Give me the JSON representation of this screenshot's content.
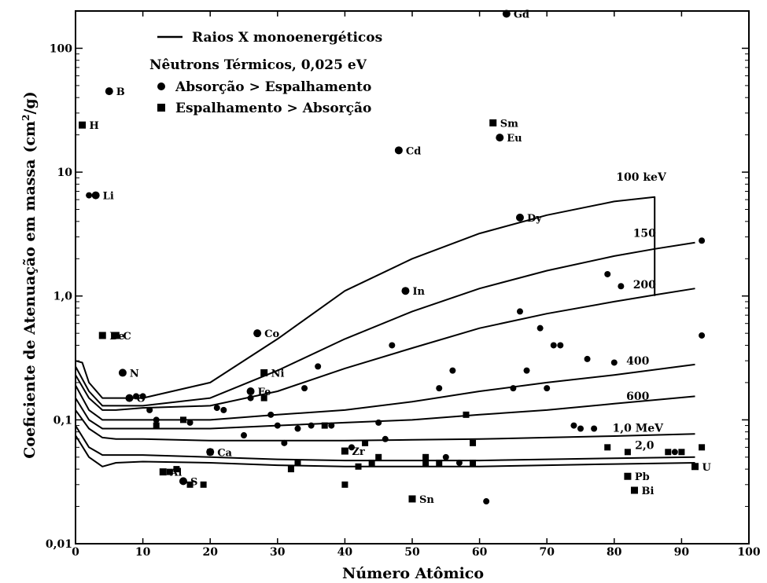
{
  "chart_data": {
    "type": "scatter",
    "xlabel": "Número Atômico",
    "ylabel_main": "Coeficiente de Atenuação em massa",
    "ylabel_unit_pre": "(cm",
    "ylabel_unit_sup": "2",
    "ylabel_unit_post": "/g)",
    "xlim": [
      0,
      100
    ],
    "ylim": [
      0.01,
      200
    ],
    "yscale": "log",
    "x_ticks": [
      "0",
      "10",
      "20",
      "30",
      "40",
      "50",
      "60",
      "70",
      "80",
      "90",
      "100"
    ],
    "y_ticks": [
      {
        "value": 0.01,
        "label": "0,01"
      },
      {
        "value": 0.1,
        "label": "0,1"
      },
      {
        "value": 1,
        "label": "1,0"
      },
      {
        "value": 10,
        "label": "10"
      },
      {
        "value": 100,
        "label": "100"
      }
    ],
    "legend": {
      "line": "Raios X monoenergéticos",
      "header": "Nêutrons Térmicos, 0,025 eV",
      "circle": "Absorção > Espalhamento",
      "square": "Espalhamento > Absorção"
    },
    "xray_series": [
      {
        "name": "100 keV",
        "points": [
          [
            0,
            0.3
          ],
          [
            1,
            0.29
          ],
          [
            2,
            0.2
          ],
          [
            4,
            0.15
          ],
          [
            6,
            0.15
          ],
          [
            10,
            0.15
          ],
          [
            20,
            0.2
          ],
          [
            30,
            0.45
          ],
          [
            40,
            1.1
          ],
          [
            50,
            2.0
          ],
          [
            60,
            3.2
          ],
          [
            70,
            4.5
          ],
          [
            80,
            5.8
          ],
          [
            86,
            6.3
          ],
          [
            86,
            1.0
          ]
        ]
      },
      {
        "name": "150",
        "points": [
          [
            0,
            0.27
          ],
          [
            2,
            0.17
          ],
          [
            4,
            0.13
          ],
          [
            6,
            0.13
          ],
          [
            10,
            0.13
          ],
          [
            20,
            0.15
          ],
          [
            30,
            0.25
          ],
          [
            40,
            0.45
          ],
          [
            50,
            0.75
          ],
          [
            60,
            1.15
          ],
          [
            70,
            1.6
          ],
          [
            80,
            2.1
          ],
          [
            86,
            2.4
          ],
          [
            92,
            2.7
          ]
        ]
      },
      {
        "name": "200",
        "points": [
          [
            0,
            0.23
          ],
          [
            2,
            0.15
          ],
          [
            4,
            0.12
          ],
          [
            6,
            0.12
          ],
          [
            10,
            0.125
          ],
          [
            20,
            0.13
          ],
          [
            30,
            0.17
          ],
          [
            40,
            0.26
          ],
          [
            50,
            0.38
          ],
          [
            60,
            0.55
          ],
          [
            70,
            0.72
          ],
          [
            80,
            0.9
          ],
          [
            86,
            1.02
          ],
          [
            92,
            1.15
          ]
        ]
      },
      {
        "name": "400",
        "points": [
          [
            0,
            0.19
          ],
          [
            2,
            0.12
          ],
          [
            4,
            0.1
          ],
          [
            6,
            0.1
          ],
          [
            10,
            0.1
          ],
          [
            20,
            0.1
          ],
          [
            30,
            0.11
          ],
          [
            40,
            0.12
          ],
          [
            50,
            0.14
          ],
          [
            60,
            0.17
          ],
          [
            70,
            0.2
          ],
          [
            80,
            0.23
          ],
          [
            92,
            0.28
          ]
        ]
      },
      {
        "name": "600",
        "points": [
          [
            0,
            0.15
          ],
          [
            2,
            0.1
          ],
          [
            4,
            0.085
          ],
          [
            6,
            0.085
          ],
          [
            10,
            0.085
          ],
          [
            20,
            0.085
          ],
          [
            30,
            0.09
          ],
          [
            40,
            0.095
          ],
          [
            50,
            0.1
          ],
          [
            60,
            0.11
          ],
          [
            70,
            0.12
          ],
          [
            80,
            0.135
          ],
          [
            92,
            0.155
          ]
        ]
      },
      {
        "name": "1,0 MeV",
        "points": [
          [
            0,
            0.12
          ],
          [
            2,
            0.085
          ],
          [
            4,
            0.072
          ],
          [
            6,
            0.07
          ],
          [
            10,
            0.07
          ],
          [
            20,
            0.068
          ],
          [
            30,
            0.068
          ],
          [
            40,
            0.068
          ],
          [
            50,
            0.069
          ],
          [
            60,
            0.07
          ],
          [
            70,
            0.072
          ],
          [
            80,
            0.074
          ],
          [
            92,
            0.077
          ]
        ]
      },
      {
        "name": "2,0",
        "points": [
          [
            0,
            0.09
          ],
          [
            2,
            0.06
          ],
          [
            4,
            0.052
          ],
          [
            6,
            0.052
          ],
          [
            10,
            0.052
          ],
          [
            20,
            0.05
          ],
          [
            30,
            0.048
          ],
          [
            40,
            0.047
          ],
          [
            50,
            0.047
          ],
          [
            60,
            0.047
          ],
          [
            70,
            0.048
          ],
          [
            80,
            0.049
          ],
          [
            92,
            0.05
          ]
        ]
      },
      {
        "name": "",
        "points": [
          [
            0,
            0.075
          ],
          [
            2,
            0.05
          ],
          [
            4,
            0.042
          ],
          [
            6,
            0.045
          ],
          [
            10,
            0.046
          ],
          [
            20,
            0.045
          ],
          [
            30,
            0.043
          ],
          [
            40,
            0.042
          ],
          [
            50,
            0.042
          ],
          [
            60,
            0.042
          ],
          [
            70,
            0.043
          ],
          [
            80,
            0.044
          ],
          [
            92,
            0.045
          ]
        ]
      }
    ],
    "curve_labels": [
      {
        "text": "100 keV",
        "x": 84,
        "y": 8.5
      },
      {
        "text": "150",
        "x": 84.5,
        "y": 3.0
      },
      {
        "text": "200",
        "x": 84.5,
        "y": 1.15
      },
      {
        "text": "400",
        "x": 83.5,
        "y": 0.28
      },
      {
        "text": "600",
        "x": 83.5,
        "y": 0.145
      },
      {
        "text": "1,0 MeV",
        "x": 83.5,
        "y": 0.08
      },
      {
        "text": "2,0",
        "x": 84.5,
        "y": 0.058
      }
    ],
    "labeled_circles": [
      {
        "label": "Gd",
        "x": 64,
        "y": 190
      },
      {
        "label": "B",
        "x": 5,
        "y": 45
      },
      {
        "label": "Cd",
        "x": 48,
        "y": 15
      },
      {
        "label": "Eu",
        "x": 63,
        "y": 19
      },
      {
        "label": "Li",
        "x": 3,
        "y": 6.5
      },
      {
        "label": "Dy",
        "x": 66,
        "y": 4.3
      },
      {
        "label": "In",
        "x": 49,
        "y": 1.1
      },
      {
        "label": "Co",
        "x": 27,
        "y": 0.5
      },
      {
        "label": "N",
        "x": 7,
        "y": 0.24
      },
      {
        "label": "O",
        "x": 8,
        "y": 0.15
      },
      {
        "label": "Fe",
        "x": 26,
        "y": 0.17
      },
      {
        "label": "Ca",
        "x": 20,
        "y": 0.055
      },
      {
        "label": "S",
        "x": 16,
        "y": 0.032
      }
    ],
    "labeled_squares": [
      {
        "label": "H",
        "x": 1,
        "y": 24
      },
      {
        "label": "Sm",
        "x": 62,
        "y": 25
      },
      {
        "label": "Be",
        "x": 4,
        "y": 0.48
      },
      {
        "label": "C",
        "x": 6,
        "y": 0.48
      },
      {
        "label": "Ni",
        "x": 28,
        "y": 0.24
      },
      {
        "label": "Al",
        "x": 13,
        "y": 0.038
      },
      {
        "label": "Zr",
        "x": 40,
        "y": 0.056
      },
      {
        "label": "Sn",
        "x": 50,
        "y": 0.023
      },
      {
        "label": "Pb",
        "x": 82,
        "y": 0.035
      },
      {
        "label": "Bi",
        "x": 83,
        "y": 0.027
      },
      {
        "label": "U",
        "x": 92,
        "y": 0.042
      }
    ],
    "circles": [
      [
        2,
        6.5
      ],
      [
        9,
        0.155
      ],
      [
        10,
        0.155
      ],
      [
        11,
        0.12
      ],
      [
        12,
        0.1
      ],
      [
        17,
        0.095
      ],
      [
        21,
        0.125
      ],
      [
        22,
        0.12
      ],
      [
        25,
        0.075
      ],
      [
        26,
        0.15
      ],
      [
        29,
        0.11
      ],
      [
        30,
        0.09
      ],
      [
        31,
        0.065
      ],
      [
        33,
        0.085
      ],
      [
        34,
        0.18
      ],
      [
        35,
        0.09
      ],
      [
        36,
        0.27
      ],
      [
        38,
        0.09
      ],
      [
        41,
        0.06
      ],
      [
        45,
        0.095
      ],
      [
        46,
        0.07
      ],
      [
        47,
        0.4
      ],
      [
        52,
        0.05
      ],
      [
        54,
        0.18
      ],
      [
        55,
        0.05
      ],
      [
        56,
        0.25
      ],
      [
        57,
        0.045
      ],
      [
        59,
        0.045
      ],
      [
        61,
        0.022
      ],
      [
        65,
        0.18
      ],
      [
        66,
        0.75
      ],
      [
        67,
        0.25
      ],
      [
        69,
        0.55
      ],
      [
        70,
        0.18
      ],
      [
        71,
        0.4
      ],
      [
        72,
        0.4
      ],
      [
        74,
        0.09
      ],
      [
        75,
        0.085
      ],
      [
        76,
        0.31
      ],
      [
        77,
        0.085
      ],
      [
        79,
        1.5
      ],
      [
        80,
        0.29
      ],
      [
        81,
        1.2
      ],
      [
        89,
        0.055
      ],
      [
        93,
        2.8
      ],
      [
        93,
        0.48
      ]
    ],
    "squares": [
      [
        12,
        0.09
      ],
      [
        14,
        0.038
      ],
      [
        15,
        0.04
      ],
      [
        16,
        0.1
      ],
      [
        17,
        0.03
      ],
      [
        19,
        0.03
      ],
      [
        20,
        0.055
      ],
      [
        28,
        0.15
      ],
      [
        32,
        0.04
      ],
      [
        33,
        0.045
      ],
      [
        37,
        0.09
      ],
      [
        40,
        0.03
      ],
      [
        42,
        0.042
      ],
      [
        43,
        0.065
      ],
      [
        44,
        0.045
      ],
      [
        45,
        0.05
      ],
      [
        52,
        0.045
      ],
      [
        52,
        0.05
      ],
      [
        54,
        0.045
      ],
      [
        58,
        0.11
      ],
      [
        59,
        0.045
      ],
      [
        59,
        0.065
      ],
      [
        79,
        0.06
      ],
      [
        82,
        0.055
      ],
      [
        88,
        0.055
      ],
      [
        90,
        0.055
      ],
      [
        93,
        0.06
      ]
    ]
  }
}
